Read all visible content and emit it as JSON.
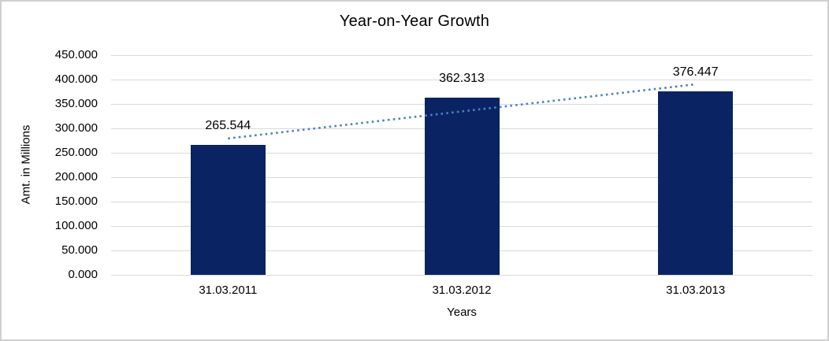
{
  "chart_data": {
    "type": "bar",
    "title": "Year-on-Year Growth",
    "xlabel": "Years",
    "ylabel": "Amt. in Millions",
    "categories": [
      "31.03.2011",
      "31.03.2012",
      "31.03.2013"
    ],
    "values": [
      265.544,
      362.313,
      376.447
    ],
    "data_labels": [
      "265.544",
      "362.313",
      "376.447"
    ],
    "ylim": [
      0,
      450
    ],
    "ytick_values": [
      0,
      50,
      100,
      150,
      200,
      250,
      300,
      350,
      400,
      450
    ],
    "ytick_labels": [
      "0.000",
      "50.000",
      "100.000",
      "150.000",
      "200.000",
      "250.000",
      "300.000",
      "350.000",
      "400.000",
      "450.000"
    ],
    "grid": true,
    "legend": "none",
    "bar_color": "#0a2463",
    "gridline_color": "#d9d9d9",
    "trendline": {
      "type": "linear",
      "style": "dotted",
      "color": "#4a80c9",
      "endpoint_values": [
        279.3,
        390.2
      ]
    }
  }
}
